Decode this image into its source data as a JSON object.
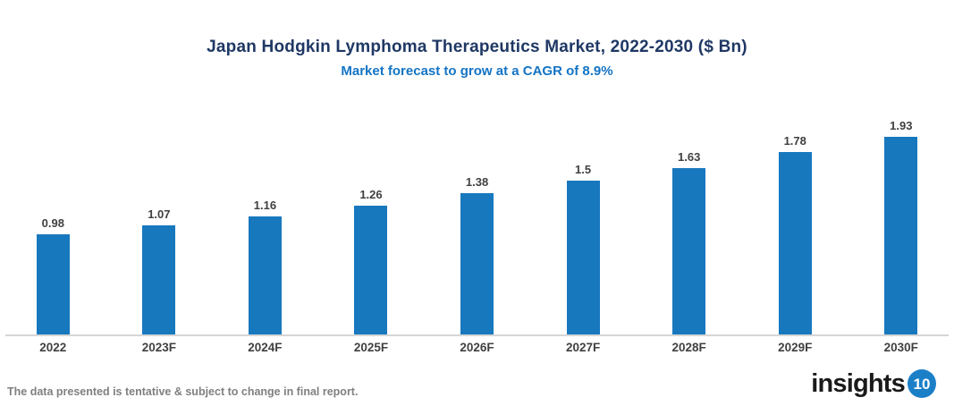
{
  "chart_data": {
    "type": "bar",
    "title": "Japan Hodgkin Lymphoma Therapeutics Market, 2022-2030 ($ Bn)",
    "subtitle": "Market forecast to grow at a CAGR of 8.9%",
    "categories": [
      "2022",
      "2023F",
      "2024F",
      "2025F",
      "2026F",
      "2027F",
      "2028F",
      "2029F",
      "2030F"
    ],
    "values": [
      0.98,
      1.07,
      1.16,
      1.26,
      1.38,
      1.5,
      1.63,
      1.78,
      1.93
    ],
    "value_labels": [
      "0.98",
      "1.07",
      "1.16",
      "1.26",
      "1.38",
      "1.5",
      "1.63",
      "1.78",
      "1.93"
    ],
    "xlabel": "",
    "ylabel": "",
    "ylim": [
      0,
      2.1
    ],
    "grid": false,
    "legend": false,
    "bar_color": "#1878BE"
  },
  "footer": {
    "note": "The data presented is tentative & subject to change in final report.",
    "logo_text": "insights",
    "logo_badge": "10"
  },
  "colors": {
    "bar": "#1878BE",
    "title": "#1F3864",
    "subtitle": "#1474C4",
    "label": "#404040",
    "axis": "#D6D6D6",
    "footnote": "#808080",
    "badge": "#1B7FC8"
  }
}
